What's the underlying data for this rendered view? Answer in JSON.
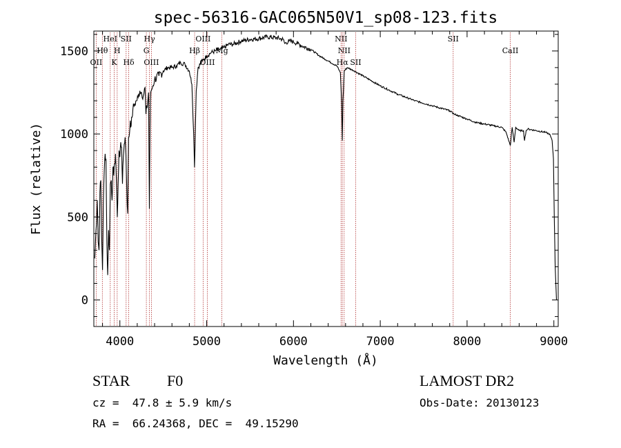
{
  "chart_data": {
    "type": "line",
    "title": "spec-56316-GAC065N50V1_sp08-123.fits",
    "xlabel": "Wavelength (Å)",
    "ylabel": "Flux (relative)",
    "xlim": [
      3700,
      9050
    ],
    "ylim": [
      -160,
      1620
    ],
    "xticks": [
      4000,
      5000,
      6000,
      7000,
      8000,
      9000
    ],
    "yticks": [
      0,
      500,
      1000,
      1500
    ],
    "grid": false,
    "legend": "none",
    "line_color": "#000000",
    "marker_color": "#b03030",
    "series": [
      {
        "x": [
          3710,
          3725,
          3740,
          3750,
          3760,
          3770,
          3780,
          3790,
          3800,
          3810,
          3820,
          3830,
          3840,
          3850,
          3860,
          3870,
          3880,
          3890,
          3900,
          3910,
          3920,
          3930,
          3940,
          3950,
          3960,
          3970,
          3980,
          3990,
          4000,
          4010,
          4020,
          4030,
          4040,
          4050,
          4060,
          4070,
          4080,
          4090,
          4100,
          4110,
          4120,
          4130,
          4140,
          4150,
          4170,
          4190,
          4210,
          4230,
          4250,
          4270,
          4290,
          4300,
          4320,
          4330,
          4340,
          4350,
          4360,
          4380,
          4400,
          4450,
          4500,
          4550,
          4600,
          4650,
          4700,
          4750,
          4800,
          4830,
          4850,
          4860,
          4870,
          4880,
          4900,
          4950,
          5000,
          5050,
          5100,
          5150,
          5200,
          5250,
          5300,
          5400,
          5500,
          5600,
          5700,
          5800,
          5880,
          5900,
          5950,
          6000,
          6050,
          6100,
          6200,
          6300,
          6400,
          6500,
          6540,
          6555,
          6563,
          6570,
          6585,
          6620,
          6700,
          6800,
          6900,
          7000,
          7200,
          7400,
          7600,
          7800,
          7850,
          7900,
          8000,
          8100,
          8200,
          8300,
          8400,
          8450,
          8498,
          8520,
          8542,
          8560,
          8600,
          8650,
          8662,
          8680,
          8700,
          8800,
          8900,
          8950,
          8980,
          8995,
          9005,
          9015,
          9030
        ],
        "y": [
          250,
          420,
          600,
          350,
          300,
          650,
          720,
          380,
          180,
          600,
          780,
          880,
          850,
          350,
          150,
          420,
          300,
          700,
          720,
          600,
          800,
          750,
          820,
          880,
          720,
          500,
          700,
          900,
          860,
          950,
          920,
          700,
          860,
          940,
          980,
          880,
          650,
          520,
          980,
          1000,
          1080,
          1050,
          1100,
          1150,
          1180,
          1200,
          1220,
          1260,
          1250,
          1230,
          1280,
          1120,
          1190,
          1250,
          550,
          1200,
          1260,
          1290,
          1330,
          1350,
          1380,
          1400,
          1400,
          1410,
          1430,
          1420,
          1380,
          1300,
          1000,
          800,
          1050,
          1260,
          1400,
          1440,
          1470,
          1490,
          1500,
          1510,
          1520,
          1540,
          1540,
          1560,
          1570,
          1575,
          1585,
          1580,
          1570,
          1545,
          1560,
          1555,
          1545,
          1530,
          1510,
          1470,
          1440,
          1410,
          1370,
          1190,
          960,
          1200,
          1380,
          1400,
          1380,
          1350,
          1320,
          1290,
          1240,
          1200,
          1170,
          1140,
          1120,
          1110,
          1090,
          1070,
          1060,
          1050,
          1040,
          1010,
          930,
          1040,
          950,
          1040,
          1020,
          1020,
          960,
          1020,
          1030,
          1020,
          1010,
          1000,
          960,
          850,
          500,
          200,
          0
        ]
      }
    ],
    "line_markers": [
      {
        "label": "OII",
        "x": 3727,
        "row": 2
      },
      {
        "label": "Hθ",
        "x": 3798,
        "row": 1
      },
      {
        "label": "HeI",
        "x": 3889,
        "row": 0
      },
      {
        "label": "K",
        "x": 3934,
        "row": 2
      },
      {
        "label": "SII",
        "x": 4072,
        "row": 0
      },
      {
        "label": "H",
        "x": 3969,
        "row": 1
      },
      {
        "label": "Hδ",
        "x": 4102,
        "row": 2
      },
      {
        "label": "Hγ",
        "x": 4341,
        "row": 0
      },
      {
        "label": "G",
        "x": 4305,
        "row": 1
      },
      {
        "label": "OIII",
        "x": 4363,
        "row": 2
      },
      {
        "label": "Hβ",
        "x": 4861,
        "row": 1
      },
      {
        "label": "OIII",
        "x": 4959,
        "row": 0
      },
      {
        "label": "OIII",
        "x": 5007,
        "row": 2
      },
      {
        "label": "Mg",
        "x": 5175,
        "row": 1
      },
      {
        "label": "NII",
        "x": 6548,
        "row": 0
      },
      {
        "label": "NII",
        "x": 6584,
        "row": 1
      },
      {
        "label": "Hα",
        "x": 6563,
        "row": 2
      },
      {
        "label": "SII",
        "x": 6717,
        "row": 2
      },
      {
        "label": "SII",
        "x": 7840,
        "row": 0
      },
      {
        "label": "CaII",
        "x": 8498,
        "row": 1
      }
    ]
  },
  "info": {
    "class_label": "STAR",
    "subclass": "F0",
    "survey": "LAMOST DR2",
    "redshift": "cz =  47.8 ± 5.9 km/s",
    "obs_date": "Obs-Date: 20130123",
    "coords": "RA =  66.24368, DEC =  49.15290"
  }
}
